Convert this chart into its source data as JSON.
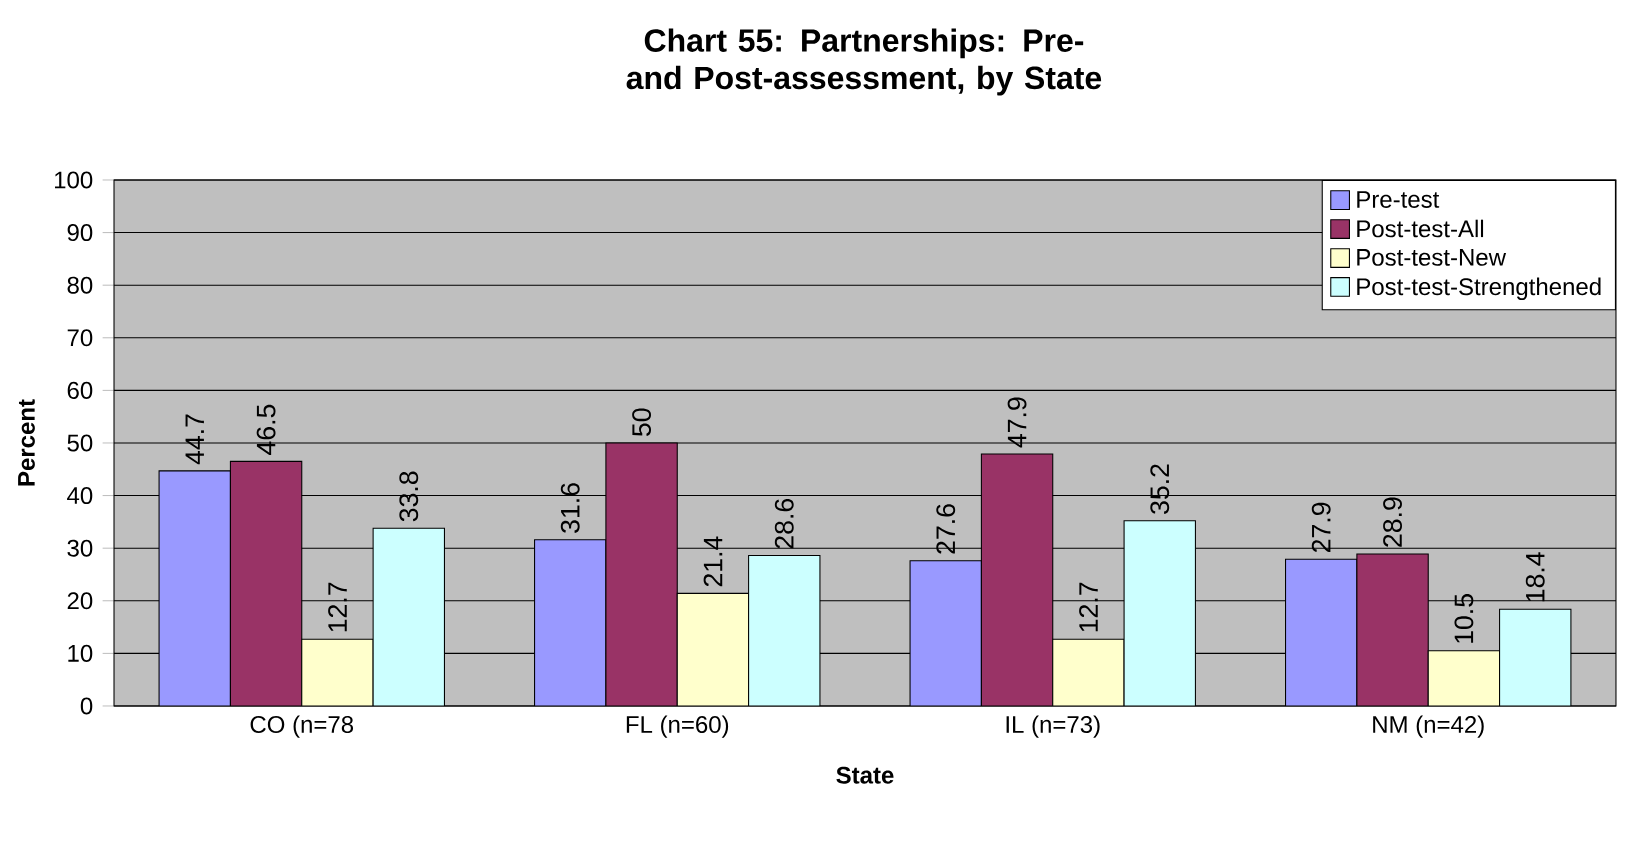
{
  "chart_data": {
    "type": "bar",
    "title": "Chart 55: Partnerships: Pre- and Post-assessment, by State",
    "xlabel": "State",
    "ylabel": "Percent",
    "categories": [
      "CO  (n=78",
      "FL (n=60)",
      "IL (n=73)",
      "NM (n=42)"
    ],
    "series": [
      {
        "name": "Pre-test",
        "color": "#9999ff",
        "values": [
          44.7,
          31.6,
          27.6,
          27.9
        ]
      },
      {
        "name": "Post-test-All",
        "color": "#993366",
        "values": [
          46.5,
          50,
          47.9,
          28.9
        ]
      },
      {
        "name": "Post-test-New",
        "color": "#ffffcc",
        "values": [
          12.7,
          21.4,
          12.7,
          10.5
        ]
      },
      {
        "name": "Post-test-Strengthened",
        "color": "#ccffff",
        "values": [
          33.8,
          28.6,
          35.2,
          18.4
        ]
      }
    ],
    "ylim": [
      0,
      100
    ],
    "yticks": [
      0,
      10,
      20,
      30,
      40,
      50,
      60,
      70,
      80,
      90,
      100
    ],
    "grid": "y",
    "legend": "top right",
    "data_labels": true
  }
}
